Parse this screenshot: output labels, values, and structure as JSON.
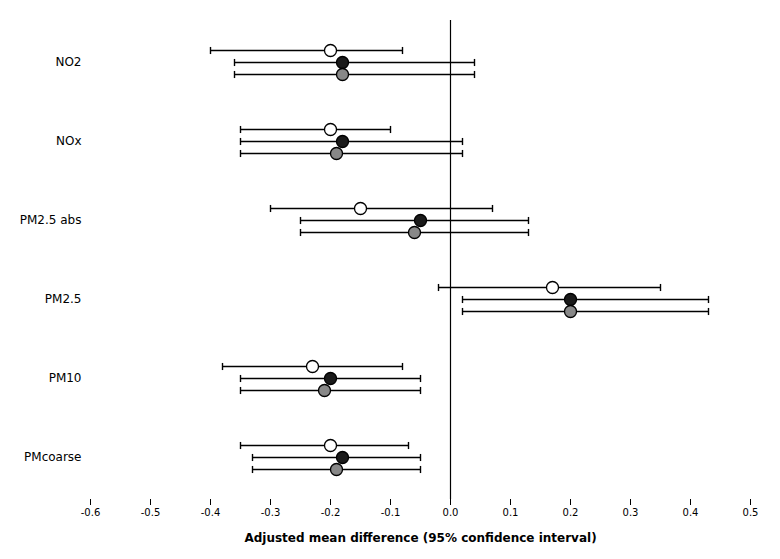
{
  "chart_data": {
    "type": "errorbar",
    "orientation": "horizontal",
    "xlabel": "Adjusted mean difference (95% confidence interval)",
    "categories": [
      "NO2",
      "NOx",
      "PM2.5 abs",
      "PM2.5",
      "PM10",
      "PMcoarse"
    ],
    "series": [
      {
        "color": "white",
        "values": [
          -0.2,
          -0.2,
          -0.15,
          0.17,
          -0.23,
          -0.2
        ],
        "ci_low": [
          -0.4,
          -0.35,
          -0.3,
          -0.02,
          -0.38,
          -0.35
        ],
        "ci_high": [
          -0.08,
          -0.1,
          0.07,
          0.35,
          -0.08,
          -0.07
        ]
      },
      {
        "color": "#1a1a1a",
        "values": [
          -0.18,
          -0.18,
          -0.05,
          0.2,
          -0.2,
          -0.18
        ],
        "ci_low": [
          -0.36,
          -0.35,
          -0.25,
          0.02,
          -0.35,
          -0.33
        ],
        "ci_high": [
          0.04,
          0.02,
          0.13,
          0.43,
          -0.05,
          -0.05
        ]
      },
      {
        "color": "#888888",
        "values": [
          -0.18,
          -0.19,
          -0.06,
          0.2,
          -0.21,
          -0.19
        ],
        "ci_low": [
          -0.36,
          -0.35,
          -0.25,
          0.02,
          -0.35,
          -0.33
        ],
        "ci_high": [
          0.04,
          0.02,
          0.13,
          0.43,
          -0.05,
          -0.05
        ]
      }
    ],
    "vline": 0,
    "xlim": [
      -0.6,
      0.5
    ],
    "xticks": [
      -0.6,
      -0.5,
      -0.4,
      -0.3,
      -0.2,
      -0.1,
      {
        "value": 0.0,
        "label": "0.0"
      },
      0.1,
      0.2,
      0.3,
      0.4,
      0.5
    ],
    "grid": false
  }
}
